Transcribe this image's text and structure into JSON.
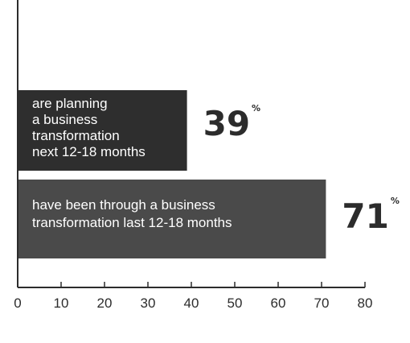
{
  "chart_data": {
    "type": "bar",
    "orientation": "horizontal",
    "categories": [
      [
        "are planning",
        "a business",
        "transformation",
        "next 12-18 months"
      ],
      [
        "have been through a business",
        "transformation last 12-18 months"
      ]
    ],
    "values": [
      39,
      71
    ],
    "value_labels": [
      "39",
      "71"
    ],
    "value_suffix": "%",
    "xlim": [
      0,
      80
    ],
    "xticks": [
      0,
      10,
      20,
      30,
      40,
      50,
      60,
      70,
      80
    ],
    "grid": false,
    "colors": {
      "bars": [
        "#2e2e2e",
        "#4a4a4a"
      ],
      "text": "#2c2c2c"
    }
  }
}
